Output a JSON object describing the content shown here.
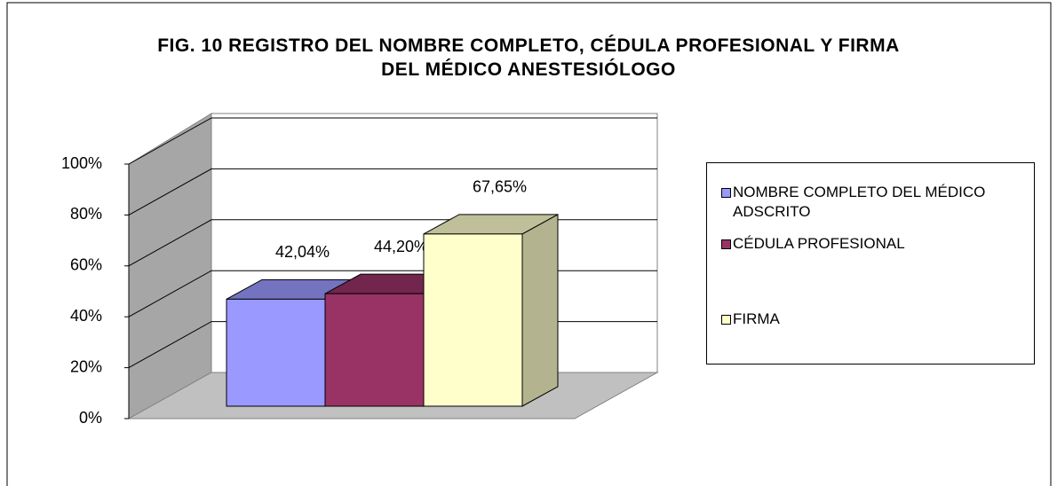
{
  "chart_data": {
    "type": "bar3d",
    "title": "FIG. 10  REGISTRO DEL  NOMBRE  COMPLETO,  CÉDULA PROFESIONAL  Y  FIRMA  DEL  MÉDICO  ANESTESIÓLOGO",
    "series": [
      {
        "name": "NOMBRE COMPLETO DEL MÉDICO ADSCRITO",
        "color": "#9999ff",
        "values": [
          42.04
        ],
        "value_labels": [
          "42,04%"
        ]
      },
      {
        "name": "CÉDULA PROFESIONAL",
        "color": "#993366",
        "values": [
          44.2
        ],
        "value_labels": [
          "44,20%"
        ]
      },
      {
        "name": "FIRMA",
        "color": "#ffffcc",
        "values": [
          67.65
        ],
        "value_labels": [
          "67,65%"
        ]
      }
    ],
    "ylim": [
      0,
      100
    ],
    "yticks": [
      {
        "value": 0,
        "label": "0%"
      },
      {
        "value": 20,
        "label": "20%"
      },
      {
        "value": 40,
        "label": "40%"
      },
      {
        "value": 60,
        "label": "60%"
      },
      {
        "value": 80,
        "label": "80%"
      },
      {
        "value": 100,
        "label": "100%"
      }
    ],
    "grid": true,
    "legend": "right"
  }
}
